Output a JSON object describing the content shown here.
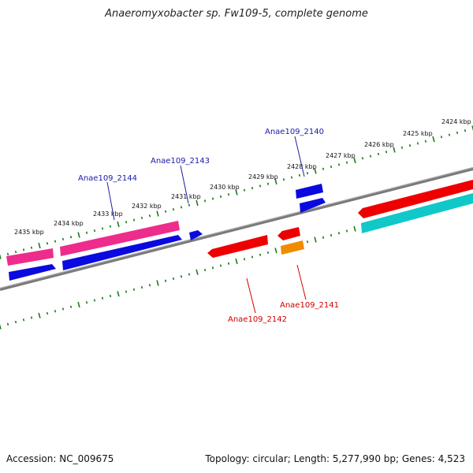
{
  "title": "Anaeromyxobacter sp. Fw109-5, complete genome",
  "footer": {
    "accession": "Accession: NC_009675",
    "topology": "Topology: circular; Length: 5,277,990 bp; Genes: 4,523"
  },
  "colors": {
    "backbone": "#7a7a7a",
    "ticks": "#1a7a1a",
    "blue_label": "#1a1aaa",
    "red_label": "#cc0000",
    "magenta": "#ee2c8c",
    "blue": "#0a0ae0",
    "red": "#ee0000",
    "orange": "#f08c00",
    "cyan": "#10c8c8"
  },
  "scale_labels": [
    "2424 kbp",
    "2425 kbp",
    "2426 kbp",
    "2427 kbp",
    "2428 kbp",
    "2429 kbp",
    "2430 kbp",
    "2431 kbp",
    "2432 kbp",
    "2433 kbp",
    "2434 kbp",
    "2435 kbp"
  ],
  "gene_labels": [
    {
      "name": "Anae109_2140",
      "color": "blue"
    },
    {
      "name": "Anae109_2143",
      "color": "blue"
    },
    {
      "name": "Anae109_2144",
      "color": "blue"
    },
    {
      "name": "Anae109_2141",
      "color": "red"
    },
    {
      "name": "Anae109_2142",
      "color": "red"
    }
  ]
}
